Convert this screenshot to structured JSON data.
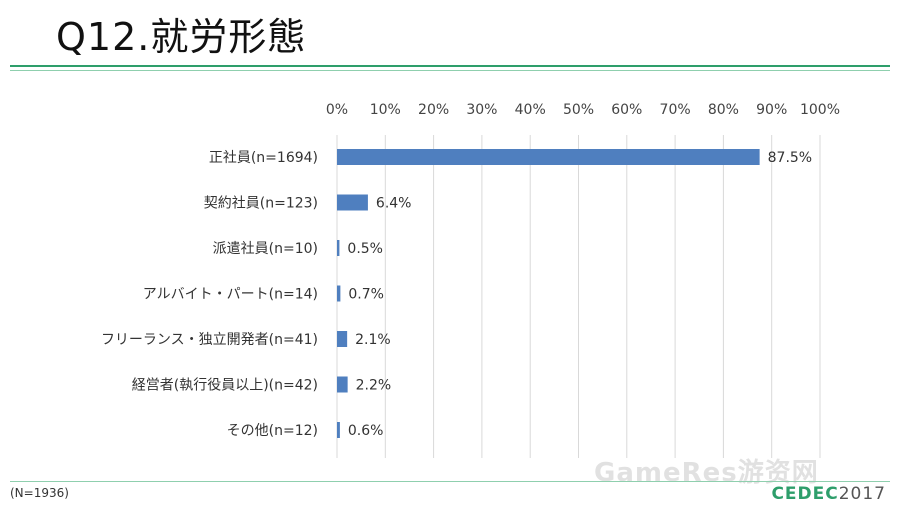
{
  "header": {
    "title": "Q12.就労形態"
  },
  "footer": {
    "note": "(N=1936)",
    "logo_text": "CEDEC",
    "logo_year": "2017"
  },
  "watermark": "GameRes游资网",
  "colors": {
    "bar": "#4f7fbf",
    "accent": "#2e9e6b",
    "grid": "#d9d9d9"
  },
  "chart_data": {
    "type": "bar",
    "orientation": "horizontal",
    "title": "",
    "xlabel": "",
    "ylabel": "",
    "xlim": [
      0,
      100
    ],
    "x_ticks": [
      "0%",
      "10%",
      "20%",
      "30%",
      "40%",
      "50%",
      "60%",
      "70%",
      "80%",
      "90%",
      "100%"
    ],
    "grid": true,
    "categories": [
      "正社員(n=1694)",
      "契約社員(n=123)",
      "派遣社員(n=10)",
      "アルバイト・パート(n=14)",
      "フリーランス・独立開発者(n=41)",
      "経営者(執行役員以上)(n=42)",
      "その他(n=12)"
    ],
    "values": [
      87.5,
      6.4,
      0.5,
      0.7,
      2.1,
      2.2,
      0.6
    ],
    "value_labels": [
      "87.5%",
      "6.4%",
      "0.5%",
      "0.7%",
      "2.1%",
      "2.2%",
      "0.6%"
    ]
  }
}
